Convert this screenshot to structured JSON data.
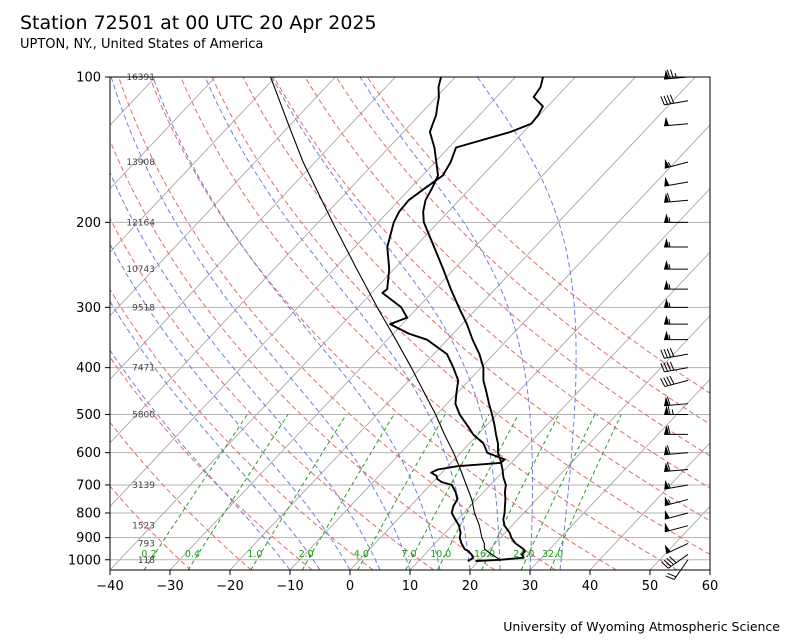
{
  "header": {
    "title": "Station 72501 at 00 UTC 20 Apr 2025",
    "subtitle": "UPTON, NY., United States of America"
  },
  "footer": {
    "credit": "University of Wyoming Atmospheric Science"
  },
  "chart_data": {
    "type": "skew-t log-p",
    "xlim": [
      -40,
      60
    ],
    "ylim": [
      1050,
      100
    ],
    "y_scale": "log",
    "x_ticks": [
      -40,
      -30,
      -20,
      -10,
      0,
      10,
      20,
      30,
      40,
      50,
      60
    ],
    "y_ticks": [
      100,
      200,
      300,
      400,
      500,
      600,
      700,
      800,
      900,
      1000
    ],
    "height_labels": [
      {
        "p": 100,
        "label": "16391"
      },
      {
        "p": 150,
        "label": "13908"
      },
      {
        "p": 200,
        "label": "12164"
      },
      {
        "p": 250,
        "label": "10743"
      },
      {
        "p": 300,
        "label": "9518"
      },
      {
        "p": 400,
        "label": "7471"
      },
      {
        "p": 500,
        "label": "5800"
      },
      {
        "p": 700,
        "label": "3139"
      },
      {
        "p": 850,
        "label": "1523"
      },
      {
        "p": 925,
        "label": "793"
      },
      {
        "p": 1000,
        "label": "118"
      }
    ],
    "mixing_ratio_labels": [
      "0.2",
      "0.4",
      "1.0",
      "2.0",
      "4.0",
      "7.0",
      "10.0",
      "16.0",
      "24.0",
      "32.0"
    ],
    "mixing_ratio_values": [
      0.2,
      0.4,
      1.0,
      2.0,
      4.0,
      7.0,
      10.0,
      16.0,
      24.0,
      32.0
    ],
    "dry_adiabats_C": [
      -30,
      -20,
      -10,
      0,
      10,
      20,
      30,
      40,
      50,
      60,
      70,
      80,
      90,
      100,
      110
    ],
    "moist_adiabats_C": [
      -10,
      -5,
      0,
      5,
      10,
      15,
      20,
      25,
      30,
      35
    ],
    "series": [
      {
        "role": "temperature",
        "color": "#000000",
        "points": [
          [
            1006,
            19.5
          ],
          [
            1000,
            23.4
          ],
          [
            990,
            27.0
          ],
          [
            975,
            26.2
          ],
          [
            960,
            26.2
          ],
          [
            950,
            25.6
          ],
          [
            925,
            23.4
          ],
          [
            900,
            21.8
          ],
          [
            880,
            20.8
          ],
          [
            850,
            18.8
          ],
          [
            825,
            17.6
          ],
          [
            800,
            16.8
          ],
          [
            775,
            15.8
          ],
          [
            750,
            14.8
          ],
          [
            725,
            13.6
          ],
          [
            700,
            12.6
          ],
          [
            675,
            11.0
          ],
          [
            650,
            9.6
          ],
          [
            625,
            8.0
          ],
          [
            600,
            6.2
          ],
          [
            575,
            4.8
          ],
          [
            550,
            3.0
          ],
          [
            525,
            1.2
          ],
          [
            500,
            -0.8
          ],
          [
            475,
            -3.0
          ],
          [
            450,
            -5.2
          ],
          [
            425,
            -7.6
          ],
          [
            400,
            -9.6
          ],
          [
            375,
            -12.4
          ],
          [
            350,
            -15.8
          ],
          [
            325,
            -19.2
          ],
          [
            300,
            -23.2
          ],
          [
            275,
            -27.4
          ],
          [
            250,
            -31.8
          ],
          [
            225,
            -36.8
          ],
          [
            200,
            -42.4
          ],
          [
            190,
            -44.2
          ],
          [
            180,
            -45.6
          ],
          [
            170,
            -46.4
          ],
          [
            160,
            -47.4
          ],
          [
            150,
            -49.8
          ],
          [
            140,
            -52.4
          ],
          [
            130,
            -55.6
          ],
          [
            125,
            -56.4
          ],
          [
            120,
            -57.2
          ],
          [
            115,
            -58.4
          ],
          [
            110,
            -59.6
          ],
          [
            105,
            -61.2
          ],
          [
            100,
            -62.4
          ]
        ]
      },
      {
        "role": "dewpoint",
        "color": "#000000",
        "points": [
          [
            1006,
            18.2
          ],
          [
            1000,
            18.4
          ],
          [
            990,
            18.6
          ],
          [
            975,
            17.8
          ],
          [
            960,
            16.8
          ],
          [
            950,
            15.8
          ],
          [
            925,
            14.4
          ],
          [
            900,
            13.2
          ],
          [
            880,
            12.6
          ],
          [
            850,
            11.2
          ],
          [
            825,
            9.6
          ],
          [
            800,
            8.0
          ],
          [
            775,
            7.2
          ],
          [
            750,
            6.8
          ],
          [
            725,
            5.4
          ],
          [
            700,
            3.6
          ],
          [
            690,
            1.4
          ],
          [
            680,
            0.2
          ],
          [
            670,
            -0.4
          ],
          [
            660,
            -1.8
          ],
          [
            650,
            -1.2
          ],
          [
            640,
            1.6
          ],
          [
            630,
            8.2
          ],
          [
            620,
            8.4
          ],
          [
            600,
            4.4
          ],
          [
            575,
            2.4
          ],
          [
            550,
            -0.8
          ],
          [
            525,
            -3.4
          ],
          [
            500,
            -6.2
          ],
          [
            475,
            -8.6
          ],
          [
            450,
            -10.2
          ],
          [
            425,
            -11.8
          ],
          [
            400,
            -14.6
          ],
          [
            375,
            -17.8
          ],
          [
            350,
            -23.4
          ],
          [
            340,
            -27.4
          ],
          [
            325,
            -32.0
          ],
          [
            315,
            -30.2
          ],
          [
            300,
            -32.8
          ],
          [
            280,
            -38.2
          ],
          [
            275,
            -38.0
          ],
          [
            250,
            -40.8
          ],
          [
            225,
            -44.6
          ],
          [
            200,
            -47.4
          ],
          [
            190,
            -48.2
          ],
          [
            180,
            -48.4
          ],
          [
            170,
            -47.6
          ],
          [
            160,
            -46.6
          ],
          [
            150,
            -47.4
          ],
          [
            140,
            -48.8
          ],
          [
            130,
            -42.2
          ],
          [
            125,
            -40.0
          ],
          [
            120,
            -40.2
          ],
          [
            115,
            -40.8
          ],
          [
            110,
            -43.8
          ],
          [
            105,
            -44.2
          ],
          [
            100,
            -45.4
          ]
        ]
      },
      {
        "role": "parcel",
        "color": "#000000",
        "points": [
          [
            1000,
            23.4
          ],
          [
            975,
            21.2
          ],
          [
            950,
            19.1
          ],
          [
            925,
            18.2
          ],
          [
            900,
            16.9
          ],
          [
            850,
            14.6
          ],
          [
            800,
            11.8
          ],
          [
            750,
            9.2
          ],
          [
            700,
            6.0
          ],
          [
            650,
            2.6
          ],
          [
            600,
            -1.2
          ],
          [
            550,
            -5.6
          ],
          [
            500,
            -10.2
          ],
          [
            450,
            -15.6
          ],
          [
            400,
            -21.6
          ],
          [
            350,
            -28.6
          ],
          [
            300,
            -36.8
          ],
          [
            250,
            -46.2
          ],
          [
            200,
            -57.6
          ],
          [
            150,
            -72.0
          ],
          [
            125,
            -80.5
          ],
          [
            100,
            -90.8
          ]
        ]
      }
    ],
    "wind_barbs": [
      {
        "p": 100,
        "speed_kt": 75,
        "dir": 265
      },
      {
        "p": 112,
        "speed_kt": 40,
        "dir": 260
      },
      {
        "p": 125,
        "speed_kt": 50,
        "dir": 265
      },
      {
        "p": 150,
        "speed_kt": 55,
        "dir": 255
      },
      {
        "p": 165,
        "speed_kt": 50,
        "dir": 260
      },
      {
        "p": 180,
        "speed_kt": 60,
        "dir": 265
      },
      {
        "p": 200,
        "speed_kt": 55,
        "dir": 270
      },
      {
        "p": 225,
        "speed_kt": 55,
        "dir": 270
      },
      {
        "p": 250,
        "speed_kt": 55,
        "dir": 270
      },
      {
        "p": 275,
        "speed_kt": 55,
        "dir": 270
      },
      {
        "p": 300,
        "speed_kt": 55,
        "dir": 270
      },
      {
        "p": 325,
        "speed_kt": 55,
        "dir": 270
      },
      {
        "p": 350,
        "speed_kt": 55,
        "dir": 270
      },
      {
        "p": 375,
        "speed_kt": 40,
        "dir": 260
      },
      {
        "p": 400,
        "speed_kt": 40,
        "dir": 260
      },
      {
        "p": 425,
        "speed_kt": 40,
        "dir": 255
      },
      {
        "p": 475,
        "speed_kt": 60,
        "dir": 265
      },
      {
        "p": 500,
        "speed_kt": 65,
        "dir": 270
      },
      {
        "p": 550,
        "speed_kt": 60,
        "dir": 270
      },
      {
        "p": 600,
        "speed_kt": 60,
        "dir": 265
      },
      {
        "p": 650,
        "speed_kt": 60,
        "dir": 265
      },
      {
        "p": 700,
        "speed_kt": 55,
        "dir": 260
      },
      {
        "p": 750,
        "speed_kt": 55,
        "dir": 255
      },
      {
        "p": 800,
        "speed_kt": 50,
        "dir": 255
      },
      {
        "p": 850,
        "speed_kt": 50,
        "dir": 255
      },
      {
        "p": 925,
        "speed_kt": 50,
        "dir": 245
      },
      {
        "p": 975,
        "speed_kt": 40,
        "dir": 235
      },
      {
        "p": 1000,
        "speed_kt": 20,
        "dir": 215
      }
    ],
    "grid": true
  }
}
